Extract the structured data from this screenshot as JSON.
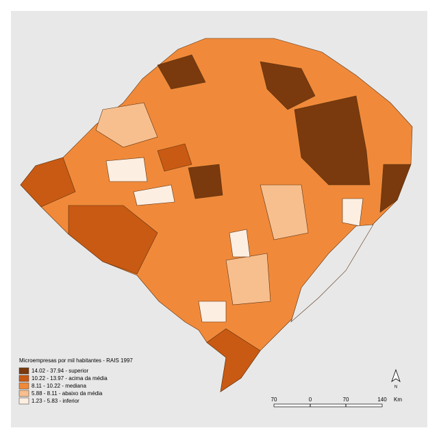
{
  "legend": {
    "title": "Microempresas por mil habitantes - RAIS 1997",
    "items": [
      {
        "label": "14.02 - 37.94 - superior",
        "color": "#7a3a0d"
      },
      {
        "label": "10.22 - 13.97 - acima da média",
        "color": "#c95a13"
      },
      {
        "label": "8.11 - 10.22 - mediana",
        "color": "#f08a3a"
      },
      {
        "label": "5.88 - 8.11 - abaixo da média",
        "color": "#f8bf8e"
      },
      {
        "label": "1.23 - 5.83 - inferior",
        "color": "#fdeee2"
      }
    ]
  },
  "scale_bar": {
    "labels": [
      "70",
      "0",
      "70",
      "140"
    ],
    "unit": "Km"
  },
  "north_arrow": "N"
}
